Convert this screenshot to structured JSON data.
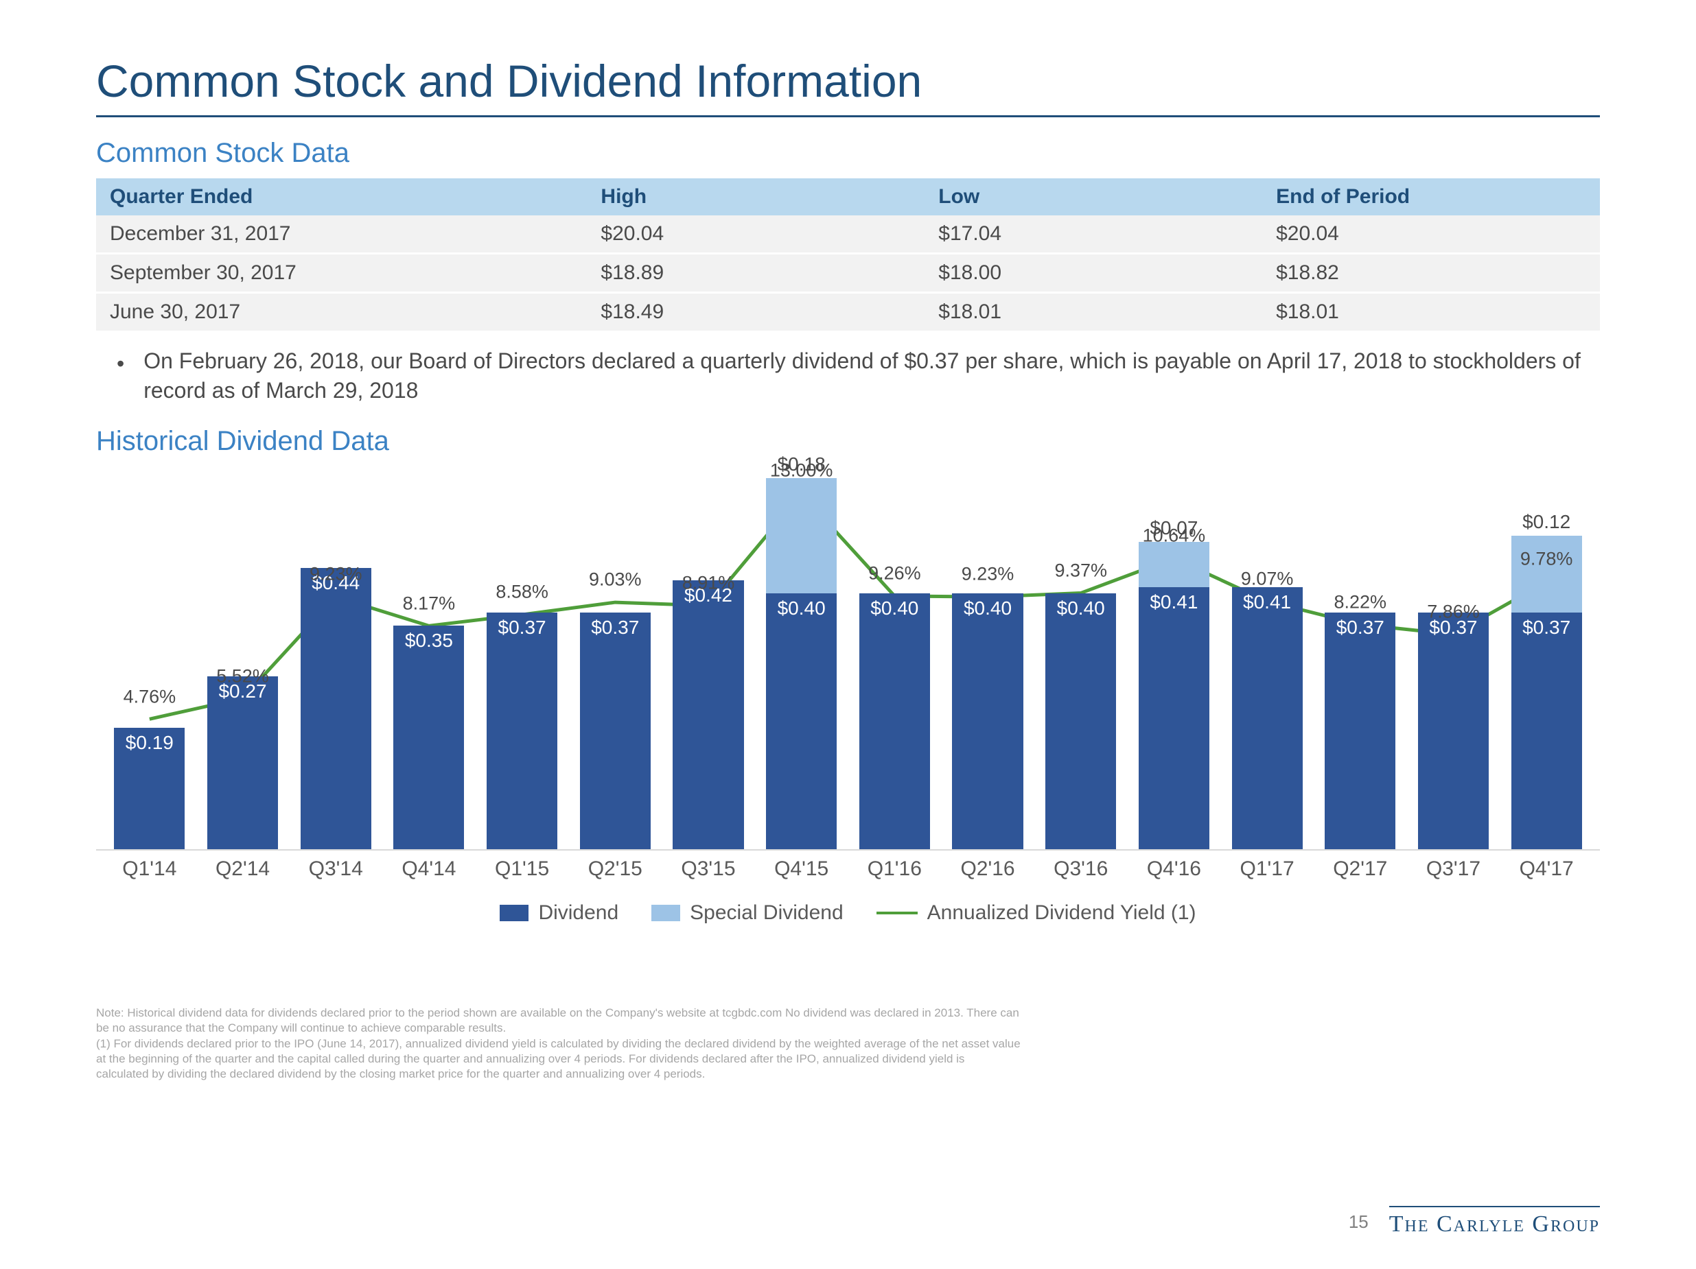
{
  "title": "Common Stock and Dividend Information",
  "stock_section_title": "Common Stock Data",
  "stock_table": {
    "headers": [
      "Quarter Ended",
      "High",
      "Low",
      "End of Period"
    ],
    "rows": [
      [
        "December 31, 2017",
        "$20.04",
        "$17.04",
        "$20.04"
      ],
      [
        "September 30, 2017",
        "$18.89",
        "$18.00",
        "$18.82"
      ],
      [
        "June 30, 2017",
        "$18.49",
        "$18.01",
        "$18.01"
      ]
    ]
  },
  "bullet_note": "On February 26, 2018, our Board of Directors declared a quarterly dividend of $0.37 per share, which is payable on April 17, 2018 to stockholders of record as of March 29, 2018",
  "dividend_section_title": "Historical Dividend Data",
  "chart": {
    "type": "bar+line",
    "colors": {
      "dividend": "#2f5597",
      "special": "#9dc3e6",
      "yield_line": "#4f9e3a",
      "background": "#ffffff",
      "axis": "#d9d9d9"
    },
    "bar_max_value": 0.6,
    "yield_max_pct": 14.0,
    "categories": [
      "Q1'14",
      "Q2'14",
      "Q3'14",
      "Q4'14",
      "Q1'15",
      "Q2'15",
      "Q3'15",
      "Q4'15",
      "Q1'16",
      "Q2'16",
      "Q3'16",
      "Q4'16",
      "Q1'17",
      "Q2'17",
      "Q3'17",
      "Q4'17"
    ],
    "dividend": [
      0.19,
      0.27,
      0.44,
      0.35,
      0.37,
      0.37,
      0.42,
      0.4,
      0.4,
      0.4,
      0.4,
      0.41,
      0.41,
      0.37,
      0.37,
      0.37
    ],
    "special": [
      0,
      0,
      0,
      0,
      0,
      0,
      0,
      0.18,
      0,
      0,
      0,
      0.07,
      0,
      0,
      0,
      0.12
    ],
    "yield_pct": [
      4.76,
      5.52,
      9.23,
      8.17,
      8.58,
      9.03,
      8.91,
      13.0,
      9.26,
      9.23,
      9.37,
      10.64,
      9.07,
      8.22,
      7.86,
      9.78
    ],
    "div_labels": [
      "$0.19",
      "$0.27",
      "$0.44",
      "$0.35",
      "$0.37",
      "$0.37",
      "$0.42",
      "$0.40",
      "$0.40",
      "$0.40",
      "$0.40",
      "$0.41",
      "$0.41",
      "$0.37",
      "$0.37",
      "$0.37"
    ],
    "special_labels": [
      "",
      "",
      "",
      "",
      "",
      "",
      "",
      "$0.18",
      "",
      "",
      "",
      "$0.07",
      "",
      "",
      "",
      "$0.12"
    ],
    "yield_labels": [
      "4.76%",
      "5.52%",
      "9.23%",
      "8.17%",
      "8.58%",
      "9.03%",
      "8.91%",
      "13.00%",
      "9.26%",
      "9.23%",
      "9.37%",
      "10.64%",
      "9.07%",
      "8.22%",
      "7.86%",
      "9.78%"
    ],
    "legend": {
      "dividend": "Dividend",
      "special": "Special Dividend",
      "yield": "Annualized Dividend Yield (1)"
    },
    "label_fontsize": 28
  },
  "footnote_lines": [
    "Note: Historical dividend data for dividends declared prior to the period shown are available on the Company's website at tcgbdc.com No dividend was declared in 2013. There can",
    "be no assurance that the Company will continue to achieve comparable results.",
    "(1) For dividends declared prior to the IPO (June 14, 2017), annualized dividend yield is calculated by dividing the declared dividend by the weighted average of the net asset value",
    "at the beginning of the quarter and the capital called during the quarter and annualizing over 4 periods. For dividends declared after the IPO, annualized dividend yield is",
    "calculated by dividing the declared dividend by the closing market price for the quarter and annualizing over 4 periods."
  ],
  "page_number": "15",
  "brand": "The Carlyle Group"
}
